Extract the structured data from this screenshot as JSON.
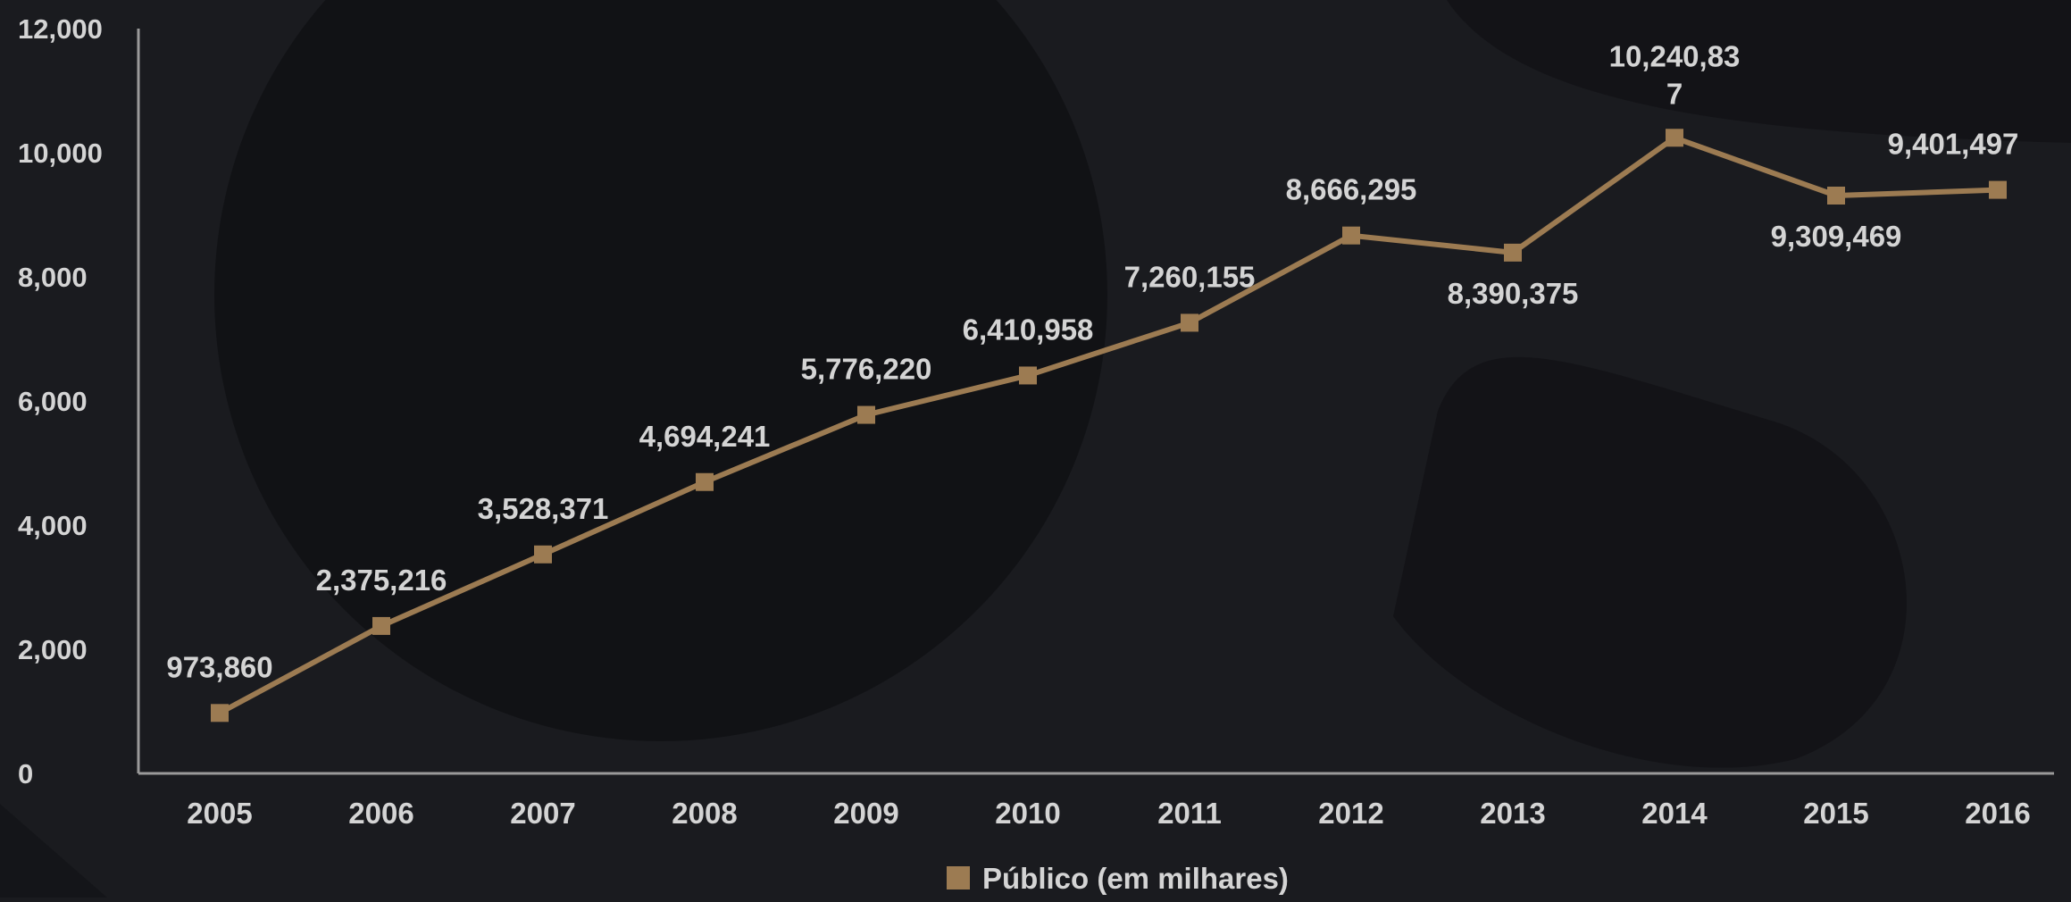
{
  "chart_data": {
    "type": "line",
    "title": "",
    "xlabel": "",
    "ylabel": "",
    "categories": [
      "2005",
      "2006",
      "2007",
      "2008",
      "2009",
      "2010",
      "2011",
      "2012",
      "2013",
      "2014",
      "2015",
      "2016"
    ],
    "ylim": [
      0,
      12000
    ],
    "yticks": [
      0,
      2000,
      4000,
      6000,
      8000,
      10000,
      12000
    ],
    "ytick_labels": [
      "0",
      "2,000",
      "4,000",
      "6,000",
      "8,000",
      "10,000",
      "12,000"
    ],
    "series": [
      {
        "name": "Público (em milhares)",
        "color": "#9c7b52",
        "values": [
          973.86,
          2375.216,
          3528.371,
          4694.241,
          5776.22,
          6410.958,
          7260.155,
          8666.295,
          8390.375,
          10240.837,
          9309.469,
          9401.497
        ],
        "data_labels": [
          "973,860",
          "2,375,216",
          "3,528,371",
          "4,694,241",
          "5,776,220",
          "6,410,958",
          "7,260,155",
          "8,666,295",
          "8,390,375",
          "10,240,837",
          "9,309,469",
          "9,401,497"
        ]
      }
    ],
    "legend": {
      "position": "bottom",
      "label": "Público (em milhares)"
    },
    "grid": false,
    "colors": {
      "background": "#1a1b1f",
      "axis": "#9a9a9a",
      "text": "#d4d4d4",
      "line": "#9c7b52"
    }
  }
}
